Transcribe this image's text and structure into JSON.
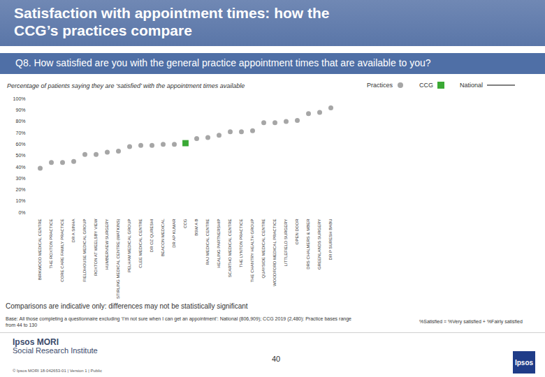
{
  "chart_data": {
    "type": "scatter",
    "title": "Satisfaction with appointment times: how the CCG’s practices compare",
    "subtitle": "Q8. How satisfied are you with the general practice appointment times that are available to you?",
    "caption": "Percentage of patients saying they are ‘satisfied’ with the appointment times available",
    "categories": [
      "BIRKWOOD MEDICAL CENTRE",
      "THE ROXTON PRACTICE",
      "CORE CARE FAMILY PRACTICE",
      "DR A SINHA",
      "FIELDHOUSE MEDICAL GROUP",
      "ROXTON AT WEELSBY VIEW",
      "HUMBERVIEW SURGERY",
      "STIRLING MEDICAL CENTRE (WATKINS)",
      "PELHAM MEDICAL GROUP",
      "CLEE MEDICAL CENTRE",
      "DR OZ QURESHI",
      "BEACON MEDICAL",
      "DR AP KUMAR",
      "CCG",
      "BSW A B",
      "RAJ MEDICAL CENTRE",
      "HEALING PARTNERSHIP",
      "SCARTHO MEDICAL CENTRE",
      "THE LYNTON PRACTICE",
      "THE CHANTRY HEALTH GROUP",
      "QUAYSIDE MEDICAL CENTRE",
      "WOODFORD MEDICAL PRACTICE",
      "LITTLEFIELD SURGERY",
      "OPEN DOOR",
      "DRS CHALMERS & MBER",
      "GREENLANDS SURGERY",
      "DR P SURESH BABU"
    ],
    "series": [
      {
        "name": "Practices",
        "color": "#a6a6a6",
        "marker": "circle",
        "values": [
          39,
          44,
          44,
          45,
          51,
          51,
          53,
          54,
          58,
          59,
          59,
          60,
          60,
          null,
          65,
          66,
          68,
          71,
          71,
          72,
          79,
          79,
          80,
          81,
          87,
          88,
          92
        ]
      },
      {
        "name": "CCG",
        "color": "#3aa935",
        "marker": "square",
        "values": [
          null,
          null,
          null,
          null,
          null,
          null,
          null,
          null,
          null,
          null,
          null,
          null,
          null,
          61,
          null,
          null,
          null,
          null,
          null,
          null,
          null,
          null,
          null,
          null,
          null,
          null,
          null
        ]
      },
      {
        "name": "National",
        "color": "#7f7f7f",
        "type": "line",
        "values": [
          null,
          null,
          null,
          null,
          null,
          null,
          null,
          null,
          null,
          null,
          null,
          null,
          null,
          null,
          null,
          null,
          null,
          null,
          null,
          null,
          null,
          null,
          null,
          null,
          null,
          null,
          null
        ]
      }
    ],
    "ylim": [
      0,
      100
    ],
    "yticks": [
      {
        "value": 0,
        "label": "0%"
      },
      {
        "value": 10,
        "label": "10%"
      },
      {
        "value": 20,
        "label": "20%"
      },
      {
        "value": 30,
        "label": "30%"
      },
      {
        "value": 40,
        "label": "40%"
      },
      {
        "value": 50,
        "label": "50%"
      },
      {
        "value": 60,
        "label": "60%"
      },
      {
        "value": 70,
        "label": "70%"
      },
      {
        "value": 80,
        "label": "80%"
      },
      {
        "value": 90,
        "label": "90%"
      },
      {
        "value": 100,
        "label": "100%"
      }
    ],
    "grid": false,
    "legend": "top-right"
  },
  "footer": {
    "note": "Comparisons are indicative only: differences may not be statistically significant",
    "base": "Base: All those completing a questionnaire excluding ‘I’m not sure when I can get an appointment’: National (806,909); CCG 2019 (2,480): Practice bases range from 44 to 130",
    "definition": "%Satisfied = %Very satisfied + %Fairly satisfied",
    "page": "40",
    "brand": "Ipsos MORI",
    "brand_sub": "Social Research Institute",
    "copyright": "© Ipsos MORI     18-042653-01 | Version 1 | Public",
    "logo": "Ipsos"
  }
}
